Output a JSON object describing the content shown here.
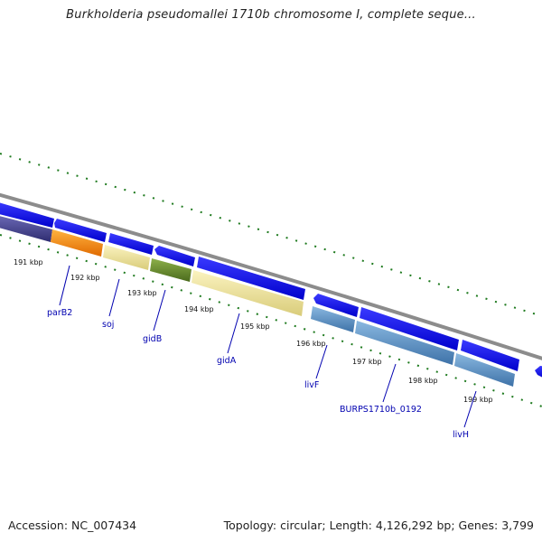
{
  "title": "Burkholderia pseudomallei 1710b chromosome I, complete seque...",
  "footer": {
    "accession": "Accession: NC_007434",
    "summary": "Topology: circular; Length: 4,126,292 bp; Genes: 3,799"
  },
  "colors": {
    "backbone": "#8c8c8c",
    "cds": "#0000ee",
    "ticks": "#2a7a2a",
    "label": "#0000b0"
  },
  "kbp_labels": [
    "191 kbp",
    "192 kbp",
    "193 kbp",
    "194 kbp",
    "195 kbp",
    "196 kbp",
    "197 kbp",
    "198 kbp",
    "199 kbp"
  ],
  "gene_labels": [
    "parB2",
    "soj",
    "gidB",
    "gidA",
    "livF",
    "BURPS1710b_0192",
    "livH"
  ]
}
